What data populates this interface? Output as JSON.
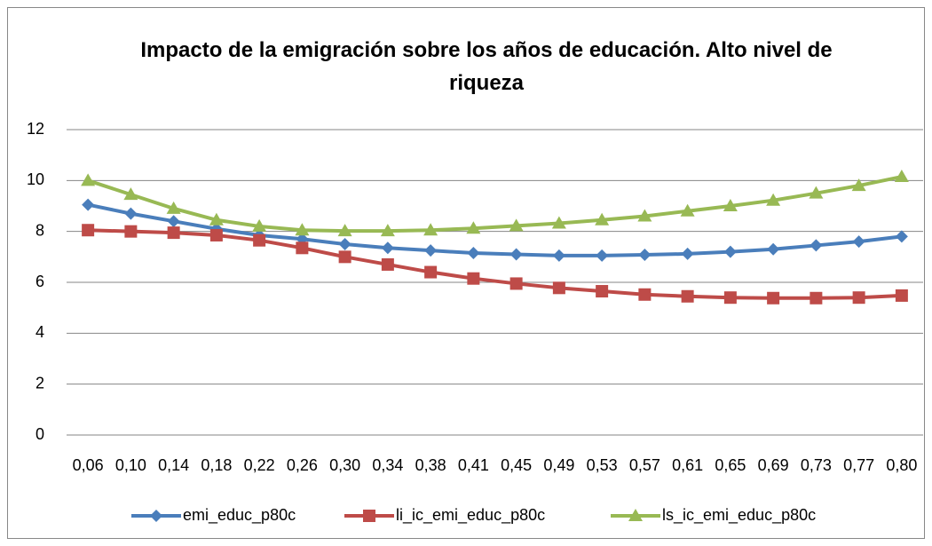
{
  "chart_data": {
    "type": "line",
    "title": "Impacto de la emigración sobre los años de educación.  Alto nivel de riqueza",
    "categories": [
      "0,06",
      "0,10",
      "0,14",
      "0,18",
      "0,22",
      "0,26",
      "0,30",
      "0,34",
      "0,38",
      "0,41",
      "0,45",
      "0,49",
      "0,53",
      "0,57",
      "0,61",
      "0,65",
      "0,69",
      "0,73",
      "0,77",
      "0,80"
    ],
    "series": [
      {
        "name": "emi_educ_p80c",
        "color": "#4a7ebb",
        "marker": "diamond",
        "values": [
          9.05,
          8.7,
          8.4,
          8.1,
          7.85,
          7.7,
          7.5,
          7.35,
          7.25,
          7.15,
          7.1,
          7.05,
          7.05,
          7.08,
          7.12,
          7.2,
          7.3,
          7.45,
          7.6,
          7.8
        ]
      },
      {
        "name": "li_ic_emi_educ_p80c",
        "color": "#be4b48",
        "marker": "square",
        "values": [
          8.05,
          8.0,
          7.95,
          7.85,
          7.65,
          7.35,
          7.0,
          6.7,
          6.4,
          6.15,
          5.95,
          5.78,
          5.65,
          5.52,
          5.45,
          5.4,
          5.38,
          5.38,
          5.4,
          5.48
        ]
      },
      {
        "name": "ls_ic_emi_educ_p80c",
        "color": "#98b954",
        "marker": "triangle",
        "values": [
          10.0,
          9.45,
          8.9,
          8.45,
          8.2,
          8.05,
          8.02,
          8.02,
          8.05,
          8.12,
          8.22,
          8.32,
          8.45,
          8.6,
          8.8,
          9.0,
          9.22,
          9.5,
          9.8,
          10.15
        ]
      }
    ],
    "ylim": [
      0,
      12
    ],
    "yticks": [
      0,
      2,
      4,
      6,
      8,
      10,
      12
    ],
    "grid": true,
    "legend": "bottom"
  }
}
